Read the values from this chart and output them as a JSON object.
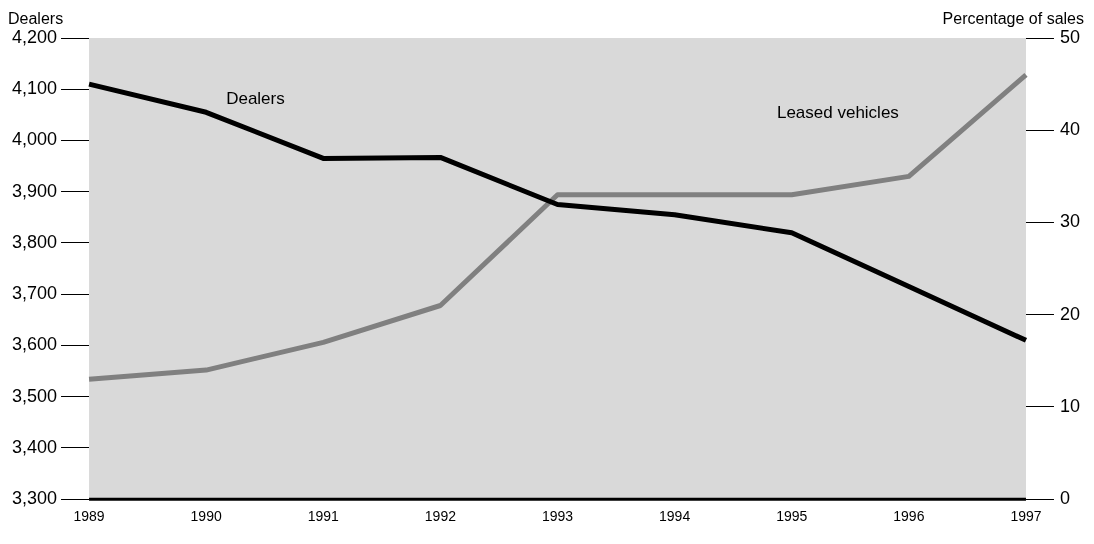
{
  "chart_data": {
    "type": "line",
    "ylabel": "Dealers",
    "y2label": "Percentage of sales",
    "categories": [
      "1989",
      "1990",
      "1991",
      "1992",
      "1993",
      "1994",
      "1995",
      "1996",
      "1997"
    ],
    "series": [
      {
        "name": "Dealers",
        "color": "#000000",
        "values": [
          4110,
          4055,
          3965,
          3967,
          3875,
          3855,
          3820,
          3715,
          3610
        ]
      },
      {
        "name": "Leased vehicles",
        "color": "#808080",
        "axis": "y2",
        "values": [
          13,
          14,
          17,
          21,
          33,
          33,
          33,
          35,
          46
        ]
      }
    ],
    "ylim": [
      3300,
      4200
    ],
    "yticks": [
      {
        "value": 3300,
        "label": "3,300"
      },
      {
        "value": 3400,
        "label": "3,400"
      },
      {
        "value": 3500,
        "label": "3,500"
      },
      {
        "value": 3600,
        "label": "3,600"
      },
      {
        "value": 3700,
        "label": "3,700"
      },
      {
        "value": 3800,
        "label": "3,800"
      },
      {
        "value": 3900,
        "label": "3,900"
      },
      {
        "value": 4000,
        "label": "4,000"
      },
      {
        "value": 4100,
        "label": "4,100"
      },
      {
        "value": 4200,
        "label": "4,200"
      }
    ],
    "y2lim": [
      0,
      50
    ],
    "y2ticks": [
      0,
      10,
      20,
      30,
      40,
      50
    ],
    "grid": false,
    "legend": false,
    "marker": "none",
    "line_style": "solid"
  }
}
